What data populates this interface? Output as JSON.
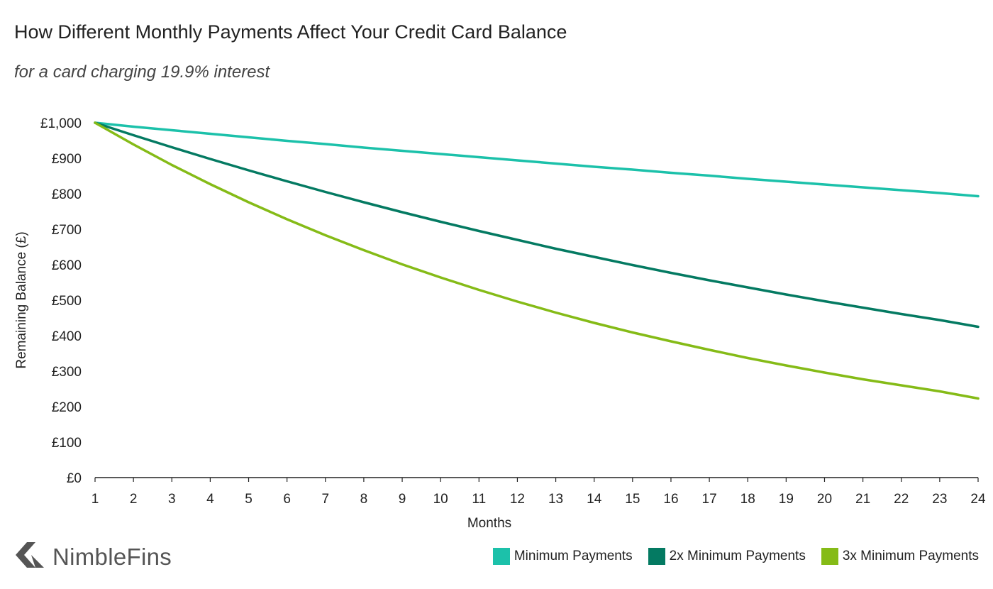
{
  "chart_data": {
    "type": "line",
    "title": "How Different Monthly Payments Affect Your Credit Card Balance",
    "subtitle": "for a card charging 19.9% interest",
    "xlabel": "Months",
    "ylabel": "Remaining Balance (£)",
    "x": [
      1,
      2,
      3,
      4,
      5,
      6,
      7,
      8,
      9,
      10,
      11,
      12,
      13,
      14,
      15,
      16,
      17,
      18,
      19,
      20,
      21,
      22,
      23,
      24
    ],
    "ylim": [
      0,
      1000
    ],
    "yticks": [
      0,
      100,
      200,
      300,
      400,
      500,
      600,
      700,
      800,
      900,
      1000
    ],
    "ytick_labels": [
      "£0",
      "£100",
      "£200",
      "£300",
      "£400",
      "£500",
      "£600",
      "£700",
      "£800",
      "£900",
      "£1,000"
    ],
    "xtick_labels": [
      "1",
      "2",
      "3",
      "4",
      "5",
      "6",
      "7",
      "8",
      "9",
      "10",
      "11",
      "12",
      "13",
      "14",
      "15",
      "16",
      "17",
      "18",
      "19",
      "20",
      "21",
      "22",
      "23",
      "24"
    ],
    "grid": false,
    "legend_position": "bottom-right",
    "series": [
      {
        "name": "Minimum Payments",
        "color": "#1cc1aa",
        "values": [
          1000,
          989,
          979,
          969,
          959,
          949,
          940,
          930,
          921,
          912,
          903,
          894,
          885,
          876,
          868,
          859,
          851,
          842,
          834,
          826,
          818,
          810,
          802,
          793
        ]
      },
      {
        "name": "2x Minimum Payments",
        "color": "#047a62",
        "values": [
          1000,
          965,
          931,
          898,
          866,
          835,
          805,
          776,
          748,
          721,
          695,
          670,
          645,
          622,
          599,
          577,
          556,
          536,
          516,
          497,
          479,
          461,
          444,
          425
        ]
      },
      {
        "name": "3x Minimum Payments",
        "color": "#85bb17",
        "values": [
          1000,
          939,
          881,
          827,
          776,
          728,
          683,
          641,
          601,
          564,
          529,
          496,
          465,
          436,
          409,
          384,
          360,
          337,
          316,
          296,
          277,
          260,
          243,
          223
        ]
      }
    ]
  },
  "brand": {
    "name": "NimbleFins",
    "logo_icon": "chevron-left-icon",
    "logo_color": "#555555"
  }
}
